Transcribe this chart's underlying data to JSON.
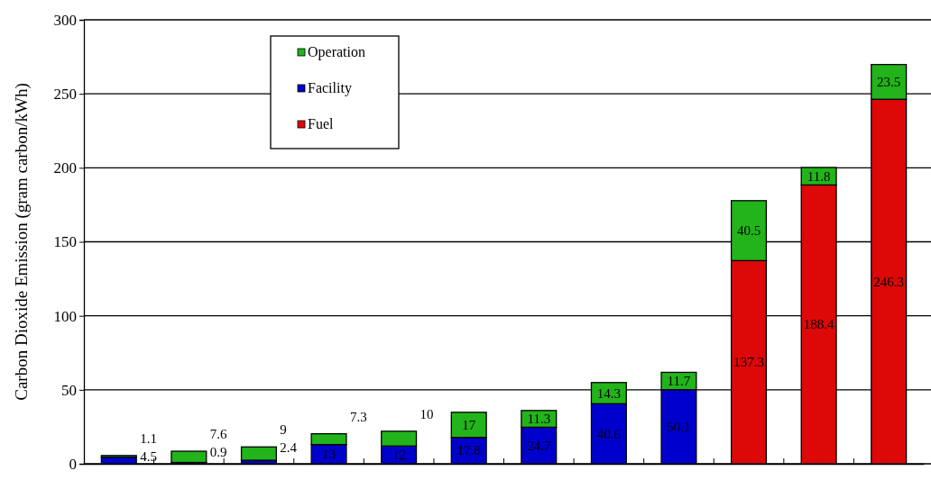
{
  "chart_data": {
    "type": "bar",
    "ylabel": "Carbon Dioxide Emission (gram carbon/kWh)",
    "stacked": true,
    "categories": [
      null,
      null,
      null,
      null,
      null,
      null,
      null,
      null,
      null,
      null,
      null,
      null
    ],
    "series": [
      {
        "name": "Fuel",
        "color": "#dd0808",
        "values": [
          null,
          null,
          null,
          null,
          null,
          null,
          null,
          null,
          null,
          137.3,
          188.4,
          246.3
        ],
        "value_labels": [
          null,
          null,
          null,
          null,
          null,
          null,
          null,
          null,
          null,
          "137.3",
          "188.4",
          "246.3"
        ]
      },
      {
        "name": "Facility",
        "color": "#0000cc",
        "values": [
          4.5,
          0.9,
          2.4,
          13,
          12,
          17.8,
          24.7,
          40.6,
          50.1,
          null,
          null,
          null
        ],
        "value_labels": [
          "4.5",
          "0.9",
          "2.4",
          "13",
          "12",
          "17.8",
          "24.7",
          "40.6",
          "50.1",
          null,
          null,
          null
        ]
      },
      {
        "name": "Operation",
        "color": "#22b41a",
        "values": [
          1.1,
          7.6,
          9,
          7.3,
          10,
          17,
          11.3,
          14.3,
          11.7,
          40.5,
          11.8,
          23.5
        ],
        "value_labels": [
          "1.1",
          "7.6",
          "9",
          "7.3",
          "10",
          "17",
          "11.3",
          "14.3",
          "11.7",
          "40.5",
          "11.8",
          "23.5"
        ]
      }
    ],
    "ylim": [
      0,
      300
    ],
    "yticks": [
      0,
      50,
      100,
      150,
      200,
      250,
      300
    ],
    "grid": "y",
    "legend": "top left",
    "tick_labels": "y"
  }
}
